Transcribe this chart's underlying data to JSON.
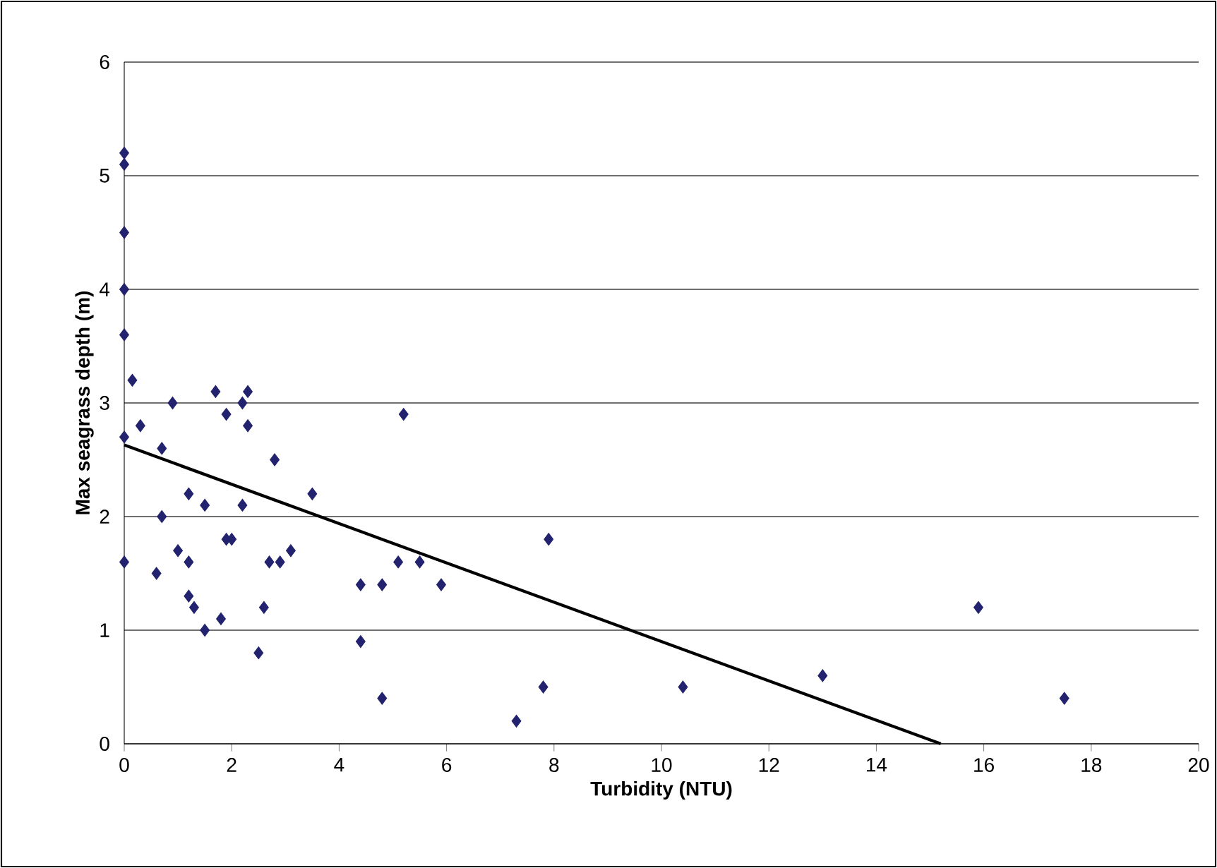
{
  "chart_data": {
    "type": "scatter",
    "xlabel": "Turbidity (NTU)",
    "ylabel": "Max seagrass depth (m)",
    "xlim": [
      0,
      20
    ],
    "xticks": [
      0,
      2,
      4,
      6,
      8,
      10,
      12,
      14,
      16,
      18,
      20
    ],
    "ylim": [
      0,
      6
    ],
    "yticks": [
      0,
      1,
      2,
      3,
      4,
      5,
      6
    ],
    "grid": "y",
    "marker": "diamond",
    "series": [
      {
        "color": "#22226e",
        "x": [
          0,
          0,
          0,
          0,
          0,
          0,
          0,
          0.15,
          0.3,
          0.9,
          0.7,
          0.7,
          0.6,
          1.0,
          1.2,
          1.2,
          1.2,
          1.3,
          1.5,
          1.5,
          1.7,
          1.9,
          1.8,
          1.9,
          2.0,
          2.2,
          2.3,
          2.3,
          2.2,
          2.5,
          2.6,
          2.7,
          2.8,
          2.9,
          3.1,
          3.5,
          4.4,
          4.4,
          4.8,
          4.8,
          5.1,
          5.2,
          5.5,
          5.9,
          7.3,
          7.8,
          7.9,
          10.4,
          13.0,
          15.9,
          17.5
        ],
        "values": [
          5.2,
          5.1,
          4.5,
          4.0,
          3.6,
          2.7,
          1.6,
          3.2,
          2.8,
          3.0,
          2.6,
          2.0,
          1.5,
          1.7,
          2.2,
          1.6,
          1.3,
          1.2,
          2.1,
          1.0,
          3.1,
          2.9,
          1.1,
          1.8,
          1.8,
          3.0,
          3.1,
          2.8,
          2.1,
          0.8,
          1.2,
          1.6,
          2.5,
          1.6,
          1.7,
          2.2,
          1.4,
          0.9,
          1.4,
          0.4,
          1.6,
          2.9,
          1.6,
          1.4,
          0.2,
          0.5,
          1.8,
          0.5,
          0.6,
          1.2,
          0.4
        ]
      },
      {
        "type": "line",
        "marker": "none",
        "color": "#000000",
        "x": [
          0,
          15.2
        ],
        "values": [
          2.63,
          0
        ]
      }
    ]
  }
}
